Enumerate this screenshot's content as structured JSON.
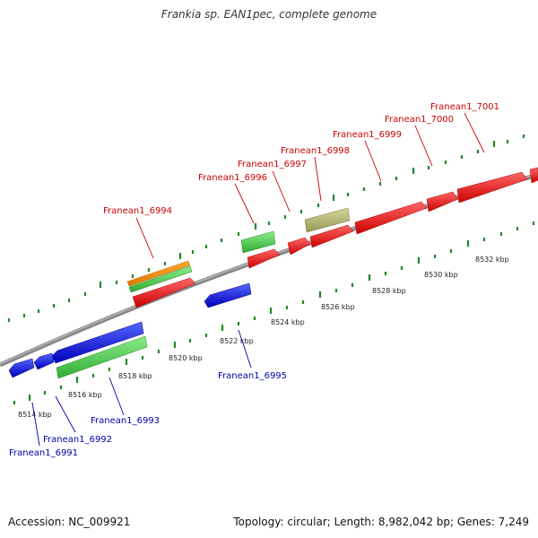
{
  "title": "Frankia sp. EAN1pec, complete genome",
  "footer": {
    "accession": "Accession: NC_009921",
    "summary": "Topology: circular; Length: 8,982,042 bp; Genes: 7,249"
  },
  "colors": {
    "forward_label": "#cc0000",
    "reverse_label": "#0000aa",
    "backbone": "#888888",
    "tick": "#22882a",
    "red": "#ee1111",
    "blue": "#1111dd",
    "green": "#44cc44",
    "orange": "#ff8800",
    "khaki": "#bbbb77"
  },
  "scale": {
    "ticks": [
      "8514 kbp",
      "8516 kbp",
      "8518 kbp",
      "8520 kbp",
      "8522 kbp",
      "8524 kbp",
      "8526 kbp",
      "8528 kbp",
      "8530 kbp",
      "8532 kbp"
    ]
  },
  "genes_forward": [
    "Franean1_6994",
    "Franean1_6996",
    "Franean1_6997",
    "Franean1_6998",
    "Franean1_6999",
    "Franean1_7000",
    "Franean1_7001"
  ],
  "genes_reverse": [
    "Franean1_6991",
    "Franean1_6992",
    "Franean1_6993",
    "Franean1_6995"
  ]
}
